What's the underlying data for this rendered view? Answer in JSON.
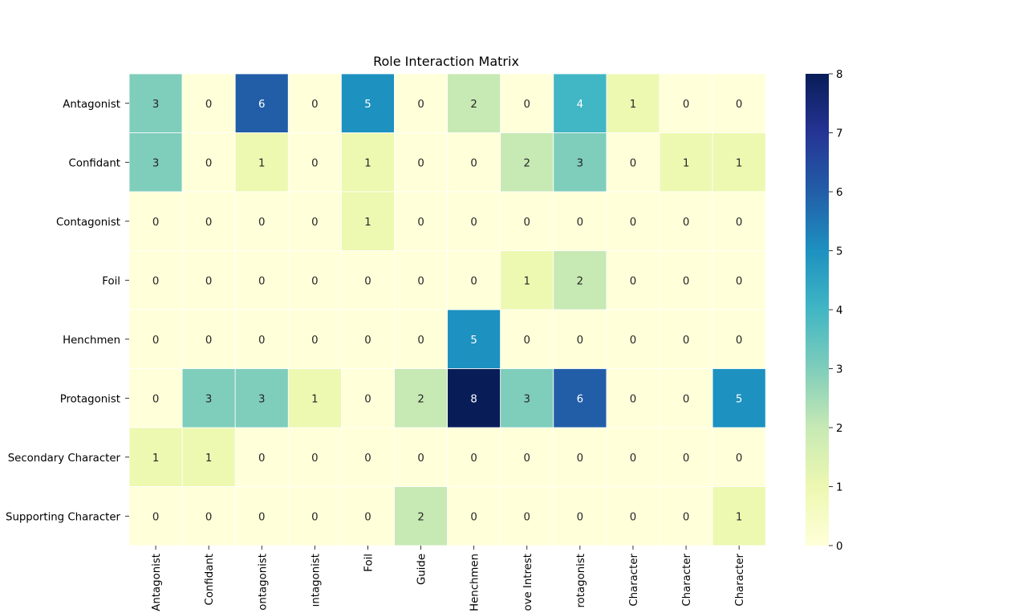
{
  "chart_data": {
    "type": "heatmap",
    "title": "Role Interaction Matrix",
    "xlabel": "",
    "ylabel": "",
    "rows": [
      "Antagonist",
      "Confidant",
      "Contagonist",
      "Foil",
      "Henchmen",
      "Protagonist",
      "Secondary Character",
      "Supporting Character"
    ],
    "columns": [
      "Antagonist",
      "Confidant",
      "ontagonist",
      "ıntagonist",
      "Foil",
      "Guide",
      "Henchmen",
      "ove Intrest",
      "rotagonist",
      "Character",
      "Character",
      "Character"
    ],
    "values": [
      [
        3,
        0,
        6,
        0,
        5,
        0,
        2,
        0,
        4,
        1,
        0,
        0
      ],
      [
        3,
        0,
        1,
        0,
        1,
        0,
        0,
        2,
        3,
        0,
        1,
        1
      ],
      [
        0,
        0,
        0,
        0,
        1,
        0,
        0,
        0,
        0,
        0,
        0,
        0
      ],
      [
        0,
        0,
        0,
        0,
        0,
        0,
        0,
        1,
        2,
        0,
        0,
        0
      ],
      [
        0,
        0,
        0,
        0,
        0,
        0,
        5,
        0,
        0,
        0,
        0,
        0
      ],
      [
        0,
        3,
        3,
        1,
        0,
        2,
        8,
        3,
        6,
        0,
        0,
        5
      ],
      [
        1,
        1,
        0,
        0,
        0,
        0,
        0,
        0,
        0,
        0,
        0,
        0
      ],
      [
        0,
        0,
        0,
        0,
        0,
        2,
        0,
        0,
        0,
        0,
        0,
        1
      ]
    ],
    "colormap": "YlGnBu",
    "vmin": 0,
    "vmax": 8,
    "colorbar_ticks": [
      0,
      1,
      2,
      3,
      4,
      5,
      6,
      7,
      8
    ],
    "annotated": true,
    "grid": false
  }
}
